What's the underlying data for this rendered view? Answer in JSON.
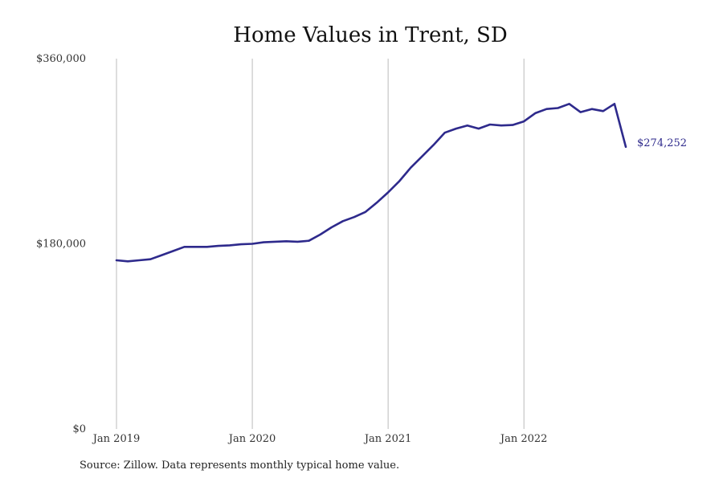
{
  "source_note": "Source: Zillow. Data represents monthly typical home value.",
  "colors": {
    "line": "#2e2a8c",
    "grid": "#bbbbbb"
  },
  "chart_data": {
    "type": "line",
    "title": "Home Values in Trent, SD",
    "xlabel": "",
    "ylabel": "",
    "ylim": [
      0,
      360000
    ],
    "xlim": [
      "2019-01",
      "2022-10"
    ],
    "y_ticks": [
      {
        "value": 0,
        "label": "$0"
      },
      {
        "value": 180000,
        "label": "$180,000"
      },
      {
        "value": 360000,
        "label": "$360,000"
      }
    ],
    "x_ticks": [
      {
        "value": "2019-01",
        "label": "Jan 2019"
      },
      {
        "value": "2020-01",
        "label": "Jan 2020"
      },
      {
        "value": "2021-01",
        "label": "Jan 2021"
      },
      {
        "value": "2022-01",
        "label": "Jan 2022"
      }
    ],
    "grid": "vertical",
    "end_label": "$274,252",
    "series": [
      {
        "x": [
          "2019-01",
          "2019-02",
          "2019-03",
          "2019-04",
          "2019-05",
          "2019-06",
          "2019-07",
          "2019-08",
          "2019-09",
          "2019-10",
          "2019-11",
          "2019-12",
          "2020-01",
          "2020-02",
          "2020-03",
          "2020-04",
          "2020-05",
          "2020-06",
          "2020-07",
          "2020-08",
          "2020-09",
          "2020-10",
          "2020-11",
          "2020-12",
          "2021-01",
          "2021-02",
          "2021-03",
          "2021-04",
          "2021-05",
          "2021-06",
          "2021-07",
          "2021-08",
          "2021-09",
          "2021-10",
          "2021-11",
          "2021-12",
          "2022-01",
          "2022-02",
          "2022-03",
          "2022-04",
          "2022-05",
          "2022-06",
          "2022-07",
          "2022-08",
          "2022-09",
          "2022-10"
        ],
        "values": [
          164000,
          163000,
          164000,
          165000,
          169000,
          173000,
          177000,
          177000,
          177000,
          178000,
          178500,
          179500,
          180000,
          181500,
          182000,
          182500,
          182000,
          183000,
          189000,
          196000,
          202000,
          206000,
          211000,
          220000,
          230000,
          241000,
          254000,
          265000,
          276000,
          288000,
          292000,
          295000,
          292000,
          296000,
          295000,
          295500,
          299000,
          307000,
          311000,
          312000,
          316000,
          308000,
          311000,
          309000,
          316000,
          274252
        ]
      }
    ]
  }
}
